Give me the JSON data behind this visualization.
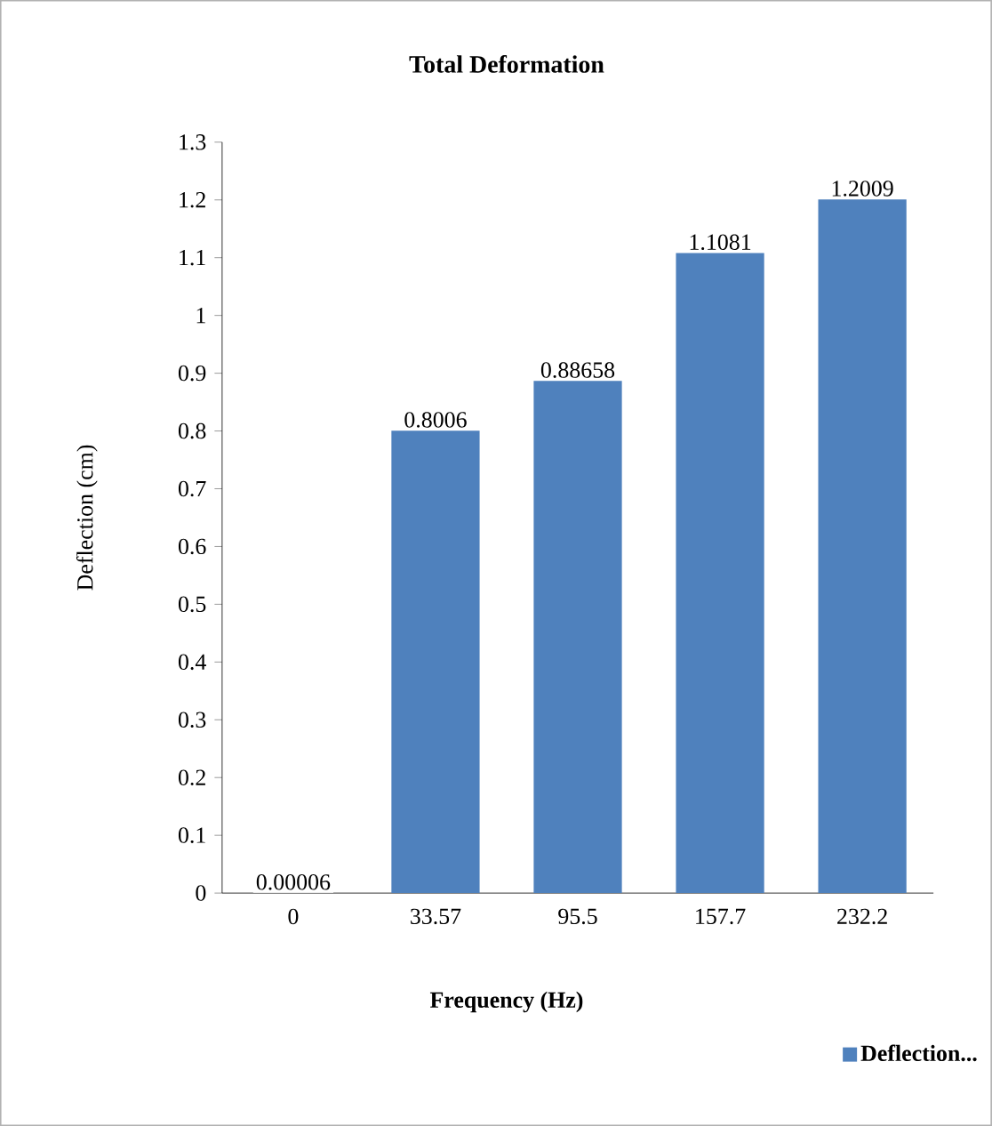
{
  "chart_data": {
    "type": "bar",
    "title": "Total Deformation",
    "xlabel": "Frequency (Hz)",
    "ylabel": "Deflection (cm)",
    "categories": [
      "0",
      "33.57",
      "95.5",
      "157.7",
      "232.2"
    ],
    "series": [
      {
        "name": "Deflection...",
        "color": "#4f81bd",
        "values": [
          6e-05,
          0.8006,
          0.88658,
          1.1081,
          1.2009
        ],
        "value_labels": [
          "0.00006",
          "0.8006",
          "0.88658",
          "1.1081",
          "1.2009"
        ]
      }
    ],
    "ylim": [
      0,
      1.3
    ],
    "yticks": [
      0,
      0.1,
      0.2,
      0.3,
      0.4,
      0.5,
      0.6,
      0.7,
      0.8,
      0.9,
      1,
      1.1,
      1.2,
      1.3
    ],
    "legend": "bottom right",
    "grid": false
  }
}
